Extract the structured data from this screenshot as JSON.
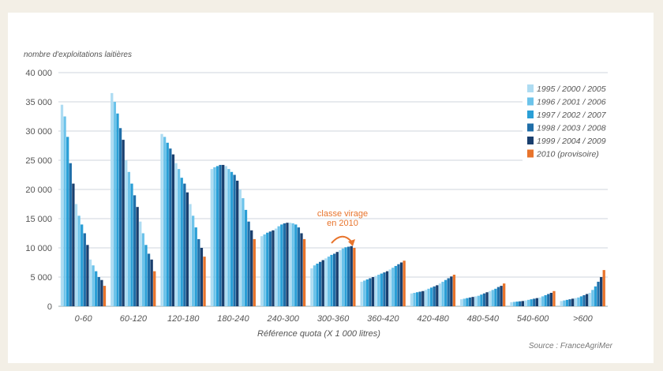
{
  "chart_data": {
    "type": "bar",
    "ylabel": "nombre d'exploitations laitières",
    "xlabel": "Référence quota (X 1 000 litres)",
    "source": "Source : FranceAgriMer",
    "ylim": [
      0,
      40000
    ],
    "yticks": [
      0,
      5000,
      10000,
      15000,
      20000,
      25000,
      30000,
      35000,
      40000
    ],
    "ytick_labels": [
      "0",
      "5 000",
      "10 000",
      "15 000",
      "20 000",
      "25 000",
      "30 000",
      "35 000",
      "40 000"
    ],
    "grid": true,
    "legend_position": "top-right",
    "legend": [
      {
        "label": "1995 / 2000 / 2005",
        "color": "#aedcf2"
      },
      {
        "label": "1996 / 2001 / 2006",
        "color": "#6cc3ea"
      },
      {
        "label": "1997 / 2002 / 2007",
        "color": "#2a9fd6"
      },
      {
        "label": "1998 / 2003 / 2008",
        "color": "#1f6ea8"
      },
      {
        "label": "1999 / 2004 / 2009",
        "color": "#1a3f6e"
      },
      {
        "label": "2010 (provisoire)",
        "color": "#e8742c"
      }
    ],
    "years": [
      1995,
      1996,
      1997,
      1998,
      1999,
      2000,
      2001,
      2002,
      2003,
      2004,
      2005,
      2006,
      2007,
      2008,
      2009,
      2010
    ],
    "categories": [
      "0-60",
      "60-120",
      "120-180",
      "180-240",
      "240-300",
      "300-360",
      "360-420",
      "420-480",
      "480-540",
      "540-600",
      ">600"
    ],
    "series_by_category": [
      [
        34500,
        32500,
        29000,
        24500,
        21000,
        17500,
        15500,
        14000,
        12500,
        10500,
        8000,
        7000,
        6000,
        5000,
        4500,
        3500
      ],
      [
        36500,
        35000,
        33000,
        30500,
        28500,
        25000,
        23000,
        21000,
        19000,
        17000,
        14500,
        12500,
        10500,
        9000,
        8000,
        6000
      ],
      [
        29500,
        29000,
        28000,
        27000,
        26000,
        24500,
        23500,
        22000,
        21000,
        19500,
        17500,
        15500,
        13500,
        11500,
        10000,
        8500
      ],
      [
        23500,
        23800,
        24000,
        24200,
        24200,
        24000,
        23500,
        23000,
        22500,
        21500,
        20000,
        18500,
        16500,
        14500,
        13000,
        11500
      ],
      [
        12000,
        12300,
        12600,
        12800,
        13000,
        13300,
        13700,
        14000,
        14200,
        14300,
        14300,
        14200,
        14000,
        13500,
        12500,
        11500
      ],
      [
        6500,
        7000,
        7300,
        7600,
        7900,
        8200,
        8500,
        8800,
        9000,
        9300,
        9600,
        9900,
        10100,
        10200,
        10300,
        10000
      ],
      [
        4200,
        4400,
        4600,
        4800,
        5000,
        5200,
        5400,
        5600,
        5800,
        6000,
        6300,
        6600,
        6900,
        7200,
        7500,
        7800
      ],
      [
        2200,
        2300,
        2400,
        2500,
        2600,
        2800,
        3000,
        3200,
        3400,
        3600,
        3900,
        4200,
        4500,
        4800,
        5100,
        5400
      ],
      [
        1200,
        1300,
        1400,
        1500,
        1600,
        1700,
        1800,
        2000,
        2200,
        2400,
        2600,
        2800,
        3000,
        3300,
        3500,
        3900
      ],
      [
        700,
        750,
        800,
        850,
        900,
        1000,
        1100,
        1200,
        1300,
        1400,
        1500,
        1700,
        1900,
        2100,
        2300,
        2600
      ],
      [
        900,
        1000,
        1100,
        1200,
        1300,
        1400,
        1500,
        1700,
        1900,
        2100,
        2300,
        2800,
        3400,
        4200,
        5000,
        6200
      ]
    ],
    "annotation": {
      "lines": [
        "classe virage",
        "en 2010"
      ],
      "category": "300-360",
      "color": "#e8742c"
    }
  }
}
